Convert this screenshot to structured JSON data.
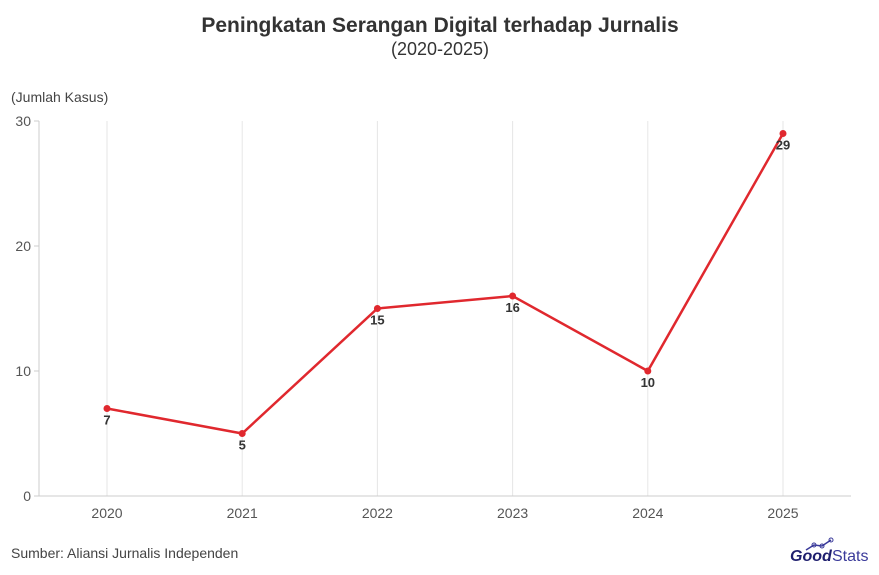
{
  "chart_data": {
    "type": "line",
    "title": "Peningkatan Serangan Digital terhadap Jurnalis",
    "subtitle": "(2020-2025)",
    "ylabel": "(Jumlah Kasus)",
    "xlabel": "",
    "categories": [
      "2020",
      "2021",
      "2022",
      "2023",
      "2024",
      "2025"
    ],
    "values": [
      7,
      5,
      15,
      16,
      10,
      29
    ],
    "ylim": [
      0,
      30
    ],
    "yticks": [
      0,
      10,
      20,
      30
    ],
    "grid": "vertical",
    "legend": "none",
    "color": "#e0282e"
  },
  "source": "Sumber: Aliansi Jurnalis Independen",
  "logo": {
    "part1": "Good",
    "part2": "Stats",
    "color1": "#1e1e6e",
    "color2": "#3a3a9a"
  }
}
